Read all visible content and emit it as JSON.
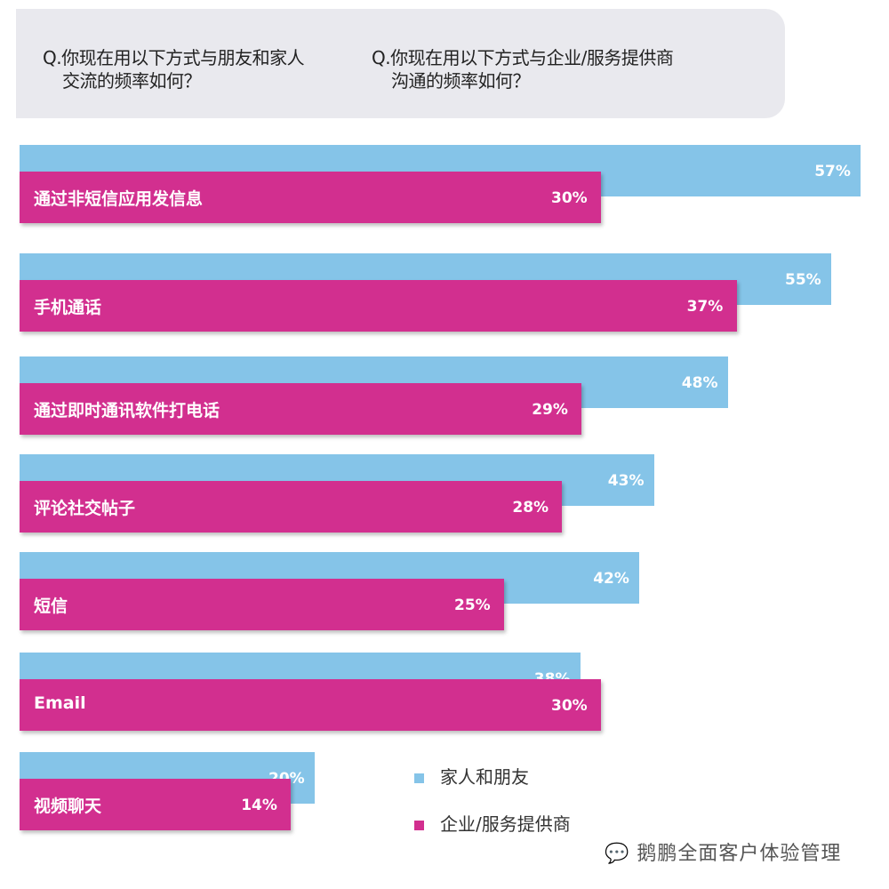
{
  "chart_data": {
    "type": "bar",
    "orientation": "horizontal",
    "questions": [
      {
        "line1": "Q.你现在用以下方式与朋友和家人",
        "line2": "交流的频率如何？"
      },
      {
        "line1": "Q.你现在用以下方式与企业/服务提供商",
        "line2": "沟通的频率如何？"
      }
    ],
    "categories": [
      "通过非短信应用发信息",
      "手机通话",
      "通过即时通讯软件打电话",
      "评论社交帖子",
      "短信",
      "Email",
      "视频聊天"
    ],
    "series": [
      {
        "name": "家人和朋友",
        "color": "#85c4e8",
        "values": [
          57,
          55,
          48,
          43,
          42,
          38,
          20
        ]
      },
      {
        "name": "企业/服务提供商",
        "color": "#d22f8f",
        "values": [
          30,
          37,
          29,
          28,
          25,
          30,
          14
        ]
      }
    ],
    "value_format": "%",
    "legend_position": "bottom-right",
    "grid": false
  },
  "watermark": "鹅鹏全面客户体验管理"
}
